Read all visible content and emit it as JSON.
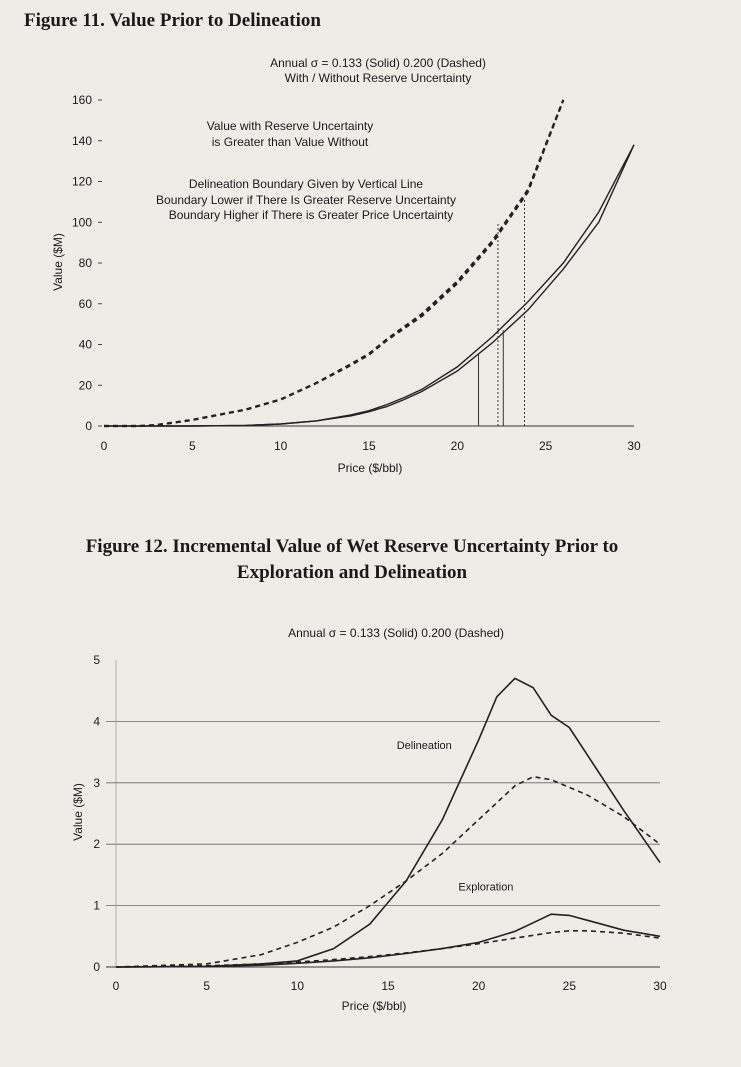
{
  "figures": {
    "fig11": {
      "title": "Figure 11. Value Prior to Delineation"
    },
    "fig12": {
      "title_line1": "Figure 12. Incremental Value of Wet Reserve Uncertainty Prior to",
      "title_line2": "Exploration and Delineation"
    }
  },
  "chart_data": [
    {
      "type": "line",
      "subtitle_line1": "Annual σ = 0.133 (Solid)  0.200 (Dashed)",
      "subtitle_line2": "With / Without Reserve Uncertainty",
      "xlabel": "Price ($/bbl)",
      "ylabel": "Value ($M)",
      "xlim": [
        0,
        30
      ],
      "ylim": [
        0,
        160
      ],
      "xticks": [
        0,
        5,
        10,
        15,
        20,
        25,
        30
      ],
      "yticks": [
        0,
        20,
        40,
        60,
        80,
        100,
        120,
        140,
        160
      ],
      "grid": false,
      "annotations": [
        "Value with Reserve Uncertainty",
        "is Greater than Value Without",
        "Delineation Boundary Given by Vertical Line",
        "Boundary Lower if There Is Greater Reserve Uncertainty",
        "Boundary Higher if There is Greater Price Uncertainty"
      ],
      "series": [
        {
          "style": "solid",
          "x": [
            0,
            5,
            8,
            10,
            12,
            14,
            15,
            16,
            17,
            18,
            20,
            22,
            24,
            26,
            28,
            30
          ],
          "y": [
            0,
            0,
            0.3,
            1,
            2.5,
            5,
            7,
            9.5,
            13,
            17,
            27,
            41,
            57,
            77,
            100,
            138
          ]
        },
        {
          "style": "solid",
          "x": [
            0,
            5,
            8,
            10,
            12,
            14,
            15,
            16,
            17,
            18,
            20,
            22,
            24,
            26,
            28,
            30
          ],
          "y": [
            0,
            0,
            0.3,
            1,
            2.5,
            5.5,
            7.5,
            10.5,
            14,
            18,
            29,
            44,
            61,
            80,
            105,
            138
          ]
        },
        {
          "style": "dashed",
          "x": [
            0,
            2,
            3,
            5,
            8,
            10,
            12,
            14,
            15,
            16,
            18,
            20,
            22,
            24,
            26
          ],
          "y": [
            0,
            0,
            0.5,
            3,
            8,
            13,
            21,
            30,
            35,
            42,
            54,
            70,
            90,
            115,
            160
          ]
        },
        {
          "style": "dashed",
          "x": [
            0,
            2,
            3,
            5,
            8,
            10,
            12,
            14,
            15,
            16,
            18,
            20,
            22,
            24,
            26
          ],
          "y": [
            0,
            0,
            0.5,
            3,
            8,
            13,
            21,
            30.5,
            35.5,
            42.5,
            55,
            71,
            91,
            116,
            160
          ]
        }
      ],
      "boundaries": [
        {
          "style": "solid",
          "x": 21.2,
          "y": 35
        },
        {
          "style": "solid",
          "x": 22.6,
          "y": 47
        },
        {
          "style": "dashed",
          "x": 22.3,
          "y": 100
        },
        {
          "style": "dashed",
          "x": 23.8,
          "y": 112
        }
      ]
    },
    {
      "type": "line",
      "subtitle": "Annual σ = 0.133 (Solid)  0.200 (Dashed)",
      "xlabel": "Price ($/bbl)",
      "ylabel": "Value ($M)",
      "xlim": [
        0,
        30
      ],
      "ylim": [
        0,
        5
      ],
      "xticks": [
        0,
        5,
        10,
        15,
        20,
        25,
        30
      ],
      "yticks": [
        0,
        1,
        2,
        3,
        4,
        5
      ],
      "grid": true,
      "labels": [
        {
          "text": "Delineation",
          "x": 17,
          "y": 3.55
        },
        {
          "text": "Exploration",
          "x": 20.4,
          "y": 1.25
        }
      ],
      "series": [
        {
          "name": "Delineation",
          "style": "solid",
          "x": [
            0,
            5,
            8,
            10,
            12,
            14,
            16,
            18,
            20,
            21,
            22,
            23,
            24,
            25,
            26,
            28,
            30
          ],
          "y": [
            0,
            0.01,
            0.05,
            0.1,
            0.3,
            0.7,
            1.4,
            2.4,
            3.7,
            4.4,
            4.7,
            4.55,
            4.1,
            3.9,
            3.45,
            2.55,
            1.7
          ]
        },
        {
          "name": "Delineation",
          "style": "dashed",
          "x": [
            0,
            5,
            8,
            10,
            12,
            14,
            16,
            18,
            20,
            22,
            23,
            24,
            26,
            28,
            30
          ],
          "y": [
            0,
            0.05,
            0.2,
            0.4,
            0.65,
            1.0,
            1.4,
            1.85,
            2.4,
            2.95,
            3.1,
            3.05,
            2.8,
            2.45,
            2.0
          ]
        },
        {
          "name": "Exploration",
          "style": "solid",
          "x": [
            0,
            5,
            8,
            10,
            12,
            14,
            16,
            18,
            20,
            22,
            23,
            24,
            25,
            26,
            28,
            30
          ],
          "y": [
            0,
            0.01,
            0.03,
            0.06,
            0.1,
            0.15,
            0.22,
            0.3,
            0.4,
            0.58,
            0.72,
            0.86,
            0.84,
            0.76,
            0.6,
            0.5
          ]
        },
        {
          "name": "Exploration",
          "style": "dashed",
          "x": [
            0,
            5,
            8,
            10,
            12,
            14,
            16,
            18,
            20,
            22,
            24,
            25,
            26,
            28,
            30
          ],
          "y": [
            0,
            0.02,
            0.05,
            0.08,
            0.12,
            0.17,
            0.23,
            0.3,
            0.38,
            0.47,
            0.56,
            0.59,
            0.59,
            0.55,
            0.47
          ]
        }
      ]
    }
  ]
}
